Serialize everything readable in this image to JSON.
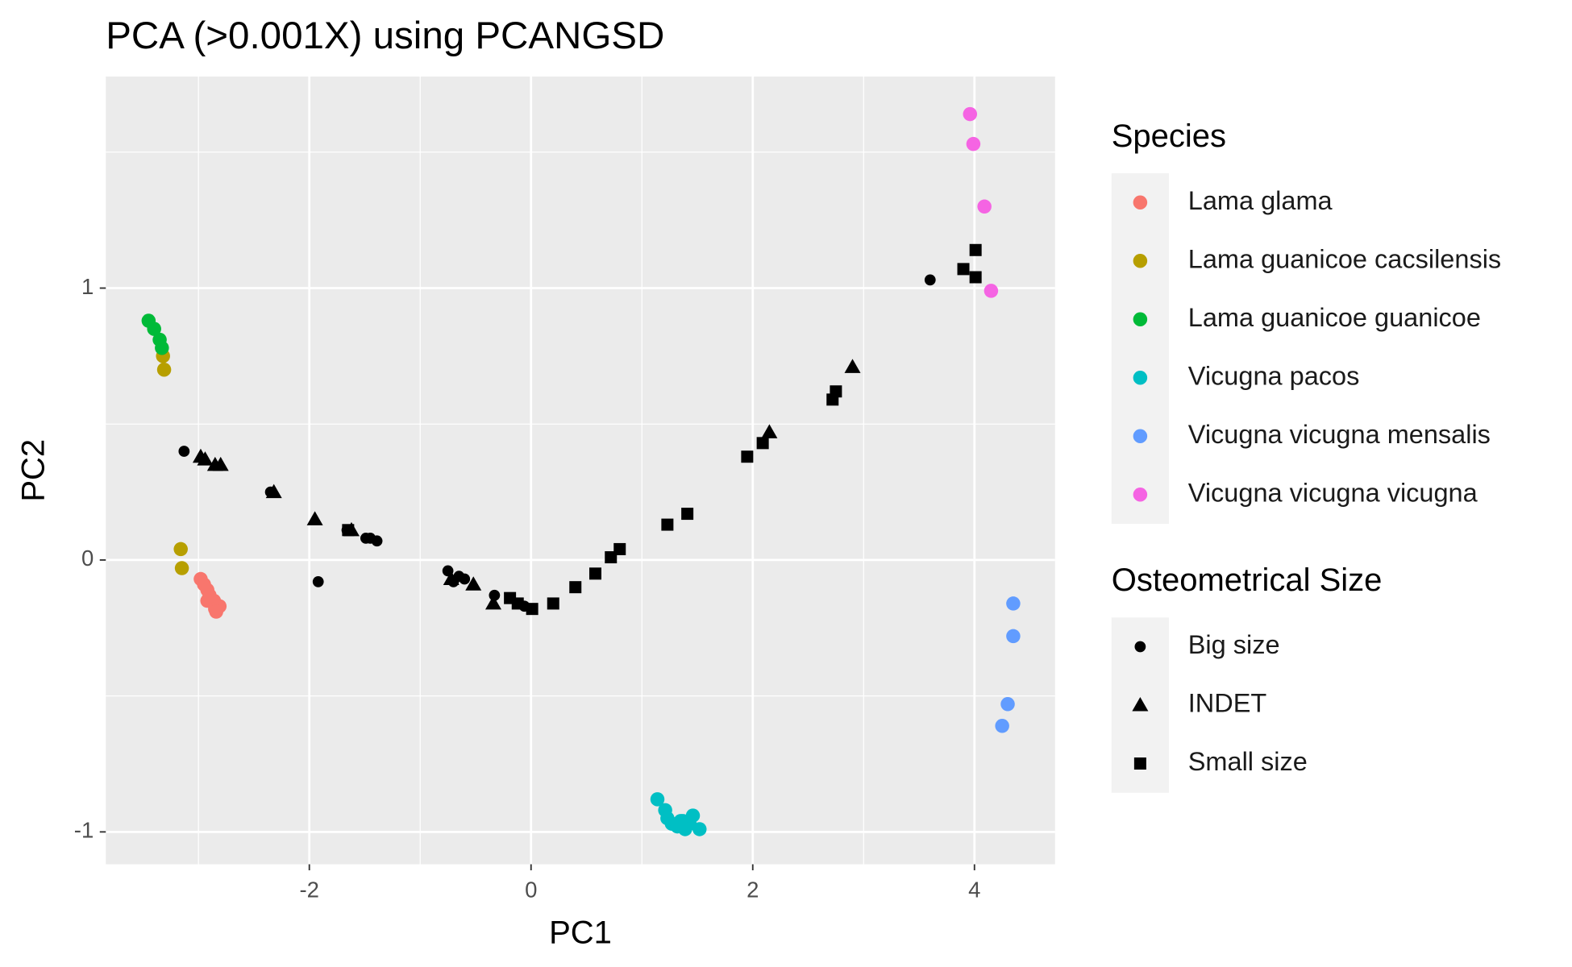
{
  "chart_data": {
    "type": "scatter",
    "title": "PCA (>0.001X) using PCANGSD",
    "x_label": "PC1",
    "y_label": "PC2",
    "xlim": [
      -3.836,
      4.727
    ],
    "ylim": [
      -1.119,
      1.778
    ],
    "xticks": [
      -2,
      0,
      2,
      4
    ],
    "yticks": [
      -1,
      0,
      1
    ],
    "xminor_ticks": [
      -3,
      -1,
      1,
      3
    ],
    "yminor_ticks": [
      -0.5,
      0.5,
      1.5
    ],
    "grid": true,
    "legend_position": "right",
    "color_legend_title": "Species",
    "shape_legend_title": "Osteometrical Size",
    "series": [
      {
        "name": "Lama glama",
        "color": "#f8766d",
        "x": [
          -2.98,
          -2.95,
          -2.92,
          -2.9,
          -2.86,
          -2.92,
          -2.85,
          -2.81,
          -2.84
        ],
        "values": [
          -0.07,
          -0.09,
          -0.11,
          -0.13,
          -0.15,
          -0.15,
          -0.18,
          -0.17,
          -0.19
        ]
      },
      {
        "name": "Lama guanicoe cacsilensis",
        "color": "#b79f00",
        "x": [
          -3.32,
          -3.31,
          -3.16,
          -3.15
        ],
        "values": [
          0.75,
          0.7,
          0.04,
          -0.03
        ]
      },
      {
        "name": "Lama guanicoe guanicoe",
        "color": "#00ba38",
        "x": [
          -3.45,
          -3.4,
          -3.35,
          -3.33
        ],
        "values": [
          0.88,
          0.85,
          0.81,
          0.78
        ]
      },
      {
        "name": "Vicugna pacos",
        "color": "#00bfc4",
        "x": [
          1.14,
          1.21,
          1.23,
          1.27,
          1.32,
          1.37,
          1.43,
          1.46,
          1.52,
          1.39,
          1.35
        ],
        "values": [
          -0.88,
          -0.92,
          -0.95,
          -0.97,
          -0.98,
          -0.96,
          -0.97,
          -0.94,
          -0.99,
          -0.99,
          -0.96
        ]
      },
      {
        "name": "Vicugna vicugna mensalis",
        "color": "#619cff",
        "x": [
          4.35,
          4.35,
          4.3,
          4.25
        ],
        "values": [
          -0.16,
          -0.28,
          -0.53,
          -0.61
        ]
      },
      {
        "name": "Vicugna vicugna vicugna",
        "color": "#f564e3",
        "x": [
          3.96,
          3.99,
          4.09,
          4.15
        ],
        "values": [
          1.64,
          1.53,
          1.3,
          0.99
        ]
      }
    ],
    "shape_series": [
      {
        "name": "Big size",
        "shape": "circle",
        "color": "#000000",
        "x": [
          -3.13,
          -1.92,
          -2.35,
          -1.49,
          -1.45,
          -1.39,
          -0.75,
          -0.7,
          -0.65,
          -0.6,
          -0.33,
          -0.11,
          -0.06,
          3.6,
          -1.66
        ],
        "values": [
          0.4,
          -0.08,
          0.25,
          0.08,
          0.08,
          0.07,
          -0.04,
          -0.08,
          -0.06,
          -0.07,
          -0.13,
          -0.16,
          -0.17,
          1.03,
          0.11
        ]
      },
      {
        "name": "INDET",
        "shape": "triangle",
        "color": "#000000",
        "x": [
          -2.98,
          -2.94,
          -2.85,
          -2.8,
          -2.32,
          -1.95,
          -1.62,
          -0.72,
          -0.52,
          -0.34,
          2.15,
          2.9
        ],
        "values": [
          0.38,
          0.37,
          0.35,
          0.35,
          0.25,
          0.15,
          0.11,
          -0.07,
          -0.09,
          -0.16,
          0.47,
          0.71
        ]
      },
      {
        "name": "Small size",
        "shape": "square",
        "color": "#000000",
        "x": [
          -1.65,
          -0.19,
          -0.12,
          0.01,
          0.2,
          0.4,
          0.58,
          0.72,
          0.8,
          1.23,
          1.41,
          1.95,
          2.09,
          2.72,
          2.75,
          3.9,
          4.01,
          4.01
        ],
        "values": [
          0.11,
          -0.14,
          -0.16,
          -0.18,
          -0.16,
          -0.1,
          -0.05,
          0.01,
          0.04,
          0.13,
          0.17,
          0.38,
          0.43,
          0.59,
          0.62,
          1.07,
          1.14,
          1.04
        ]
      }
    ]
  }
}
